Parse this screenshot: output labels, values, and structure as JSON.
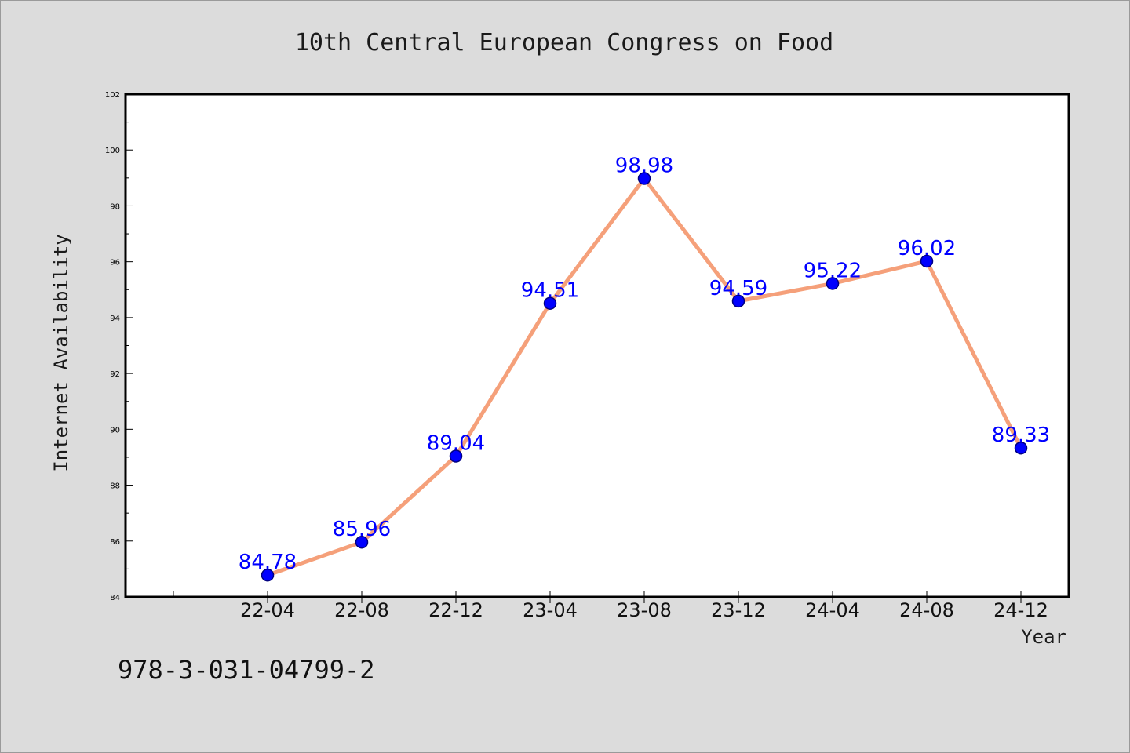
{
  "chart_data": {
    "type": "line",
    "title": "10th Central European Congress on Food",
    "xlabel": "Year",
    "ylabel": "Internet Availability",
    "categories": [
      "22-04",
      "22-08",
      "22-12",
      "23-04",
      "23-08",
      "23-12",
      "24-04",
      "24-08",
      "24-12"
    ],
    "series": [
      {
        "values": [
          84.78,
          85.96,
          89.04,
          94.51,
          98.98,
          94.59,
          95.22,
          96.02,
          89.33
        ],
        "color": "#f5a07a",
        "marker_color": "#0000ff"
      }
    ],
    "data_labels": [
      "84.78",
      "85.96",
      "89.04",
      "94.51",
      "98.98",
      "94.59",
      "95.22",
      "96.02",
      "89.33"
    ],
    "y_ticks": [
      "84",
      "86",
      "88",
      "90",
      "92",
      "94",
      "96",
      "98",
      "100",
      "102"
    ],
    "ylim": [
      84,
      102
    ],
    "grid": false,
    "legend": "none",
    "data_label_color": "#0000ff"
  },
  "footer": {
    "isbn": "978-3-031-04799-2"
  }
}
